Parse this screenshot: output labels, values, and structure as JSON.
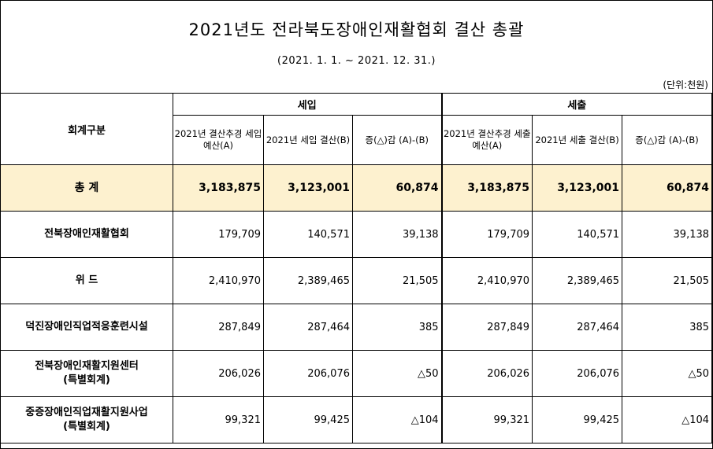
{
  "title": "2021년도 전라북도장애인재활협회 결산 총괄",
  "period": "(2021. 1. 1. ~ 2021. 12. 31.)",
  "unit": "(단위:천원)",
  "headers": {
    "category": "회계구분",
    "revenue": "세입",
    "expenditure": "세출",
    "rev_budget": "2021년 결산추경 세입 예산(A)",
    "rev_settle": "2021년 세입 결산(B)",
    "rev_diff": "증(△)감 (A)-(B)",
    "exp_budget": "2021년 결산추경 세출 예산(A)",
    "exp_settle": "2021년 세출 결산(B)",
    "exp_diff": "증(△)감 (A)-(B)"
  },
  "rows": [
    {
      "label": "총 계",
      "label2": "",
      "values": [
        "3,183,875",
        "3,123,001",
        "60,874",
        "3,183,875",
        "3,123,001",
        "60,874"
      ]
    },
    {
      "label": "전북장애인재활협회",
      "label2": "",
      "values": [
        "179,709",
        "140,571",
        "39,138",
        "179,709",
        "140,571",
        "39,138"
      ]
    },
    {
      "label": "위 드",
      "label2": "",
      "values": [
        "2,410,970",
        "2,389,465",
        "21,505",
        "2,410,970",
        "2,389,465",
        "21,505"
      ]
    },
    {
      "label": "덕진장애인직업적응훈련시설",
      "label2": "",
      "values": [
        "287,849",
        "287,464",
        "385",
        "287,849",
        "287,464",
        "385"
      ]
    },
    {
      "label": "전북장애인재활지원센터",
      "label2": "(특별회계)",
      "values": [
        "206,026",
        "206,076",
        "△50",
        "206,026",
        "206,076",
        "△50"
      ]
    },
    {
      "label": "중증장애인직업재활지원사업",
      "label2": "(특별회계)",
      "values": [
        "99,321",
        "99,425",
        "△104",
        "99,321",
        "99,425",
        "△104"
      ]
    }
  ]
}
